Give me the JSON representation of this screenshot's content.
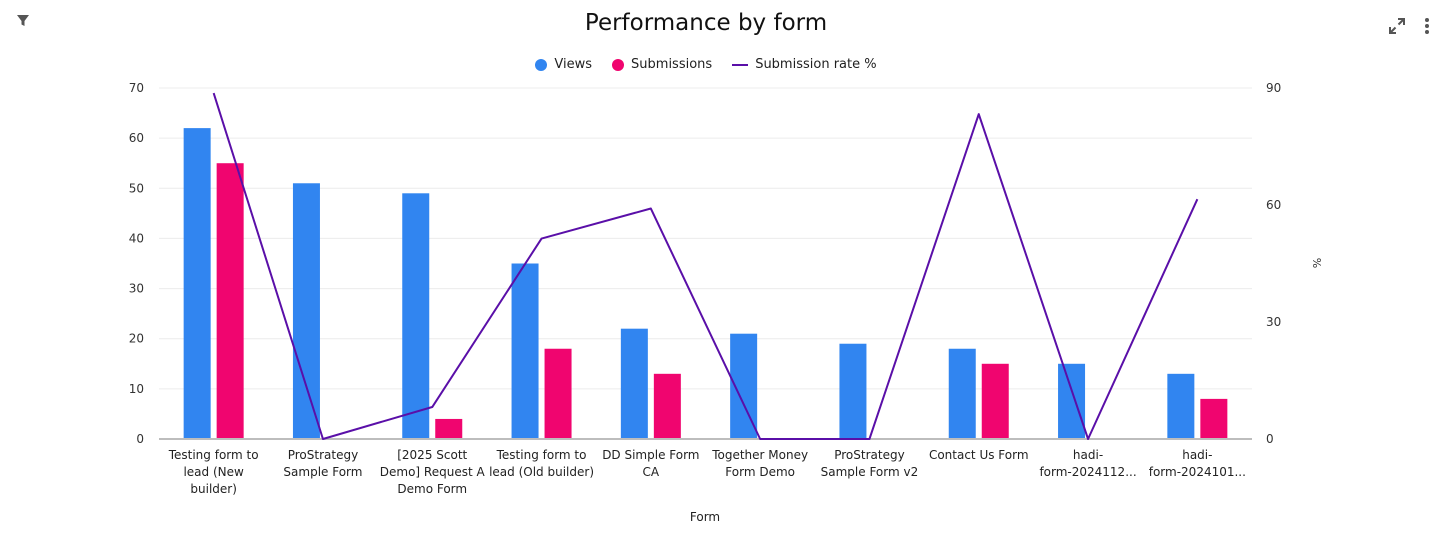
{
  "toolbar": {
    "filter_icon": "filter-icon",
    "expand_icon": "expand-icon",
    "menu_icon": "more-vertical-icon"
  },
  "colors": {
    "views": "#3185f0",
    "submissions": "#f0056f",
    "rate": "#5a0fa8",
    "grid": "#ececec",
    "axis": "#bdbdbd"
  },
  "chart_data": {
    "type": "bar",
    "title": "Performance by form",
    "xlabel": "Form",
    "ylabel": "",
    "y2label": "%",
    "ylim": [
      0,
      70
    ],
    "y2lim": [
      0,
      90
    ],
    "yticks": [
      "0",
      "10",
      "20",
      "30",
      "40",
      "50",
      "60",
      "70"
    ],
    "y2ticks": [
      "0",
      "30",
      "60",
      "90"
    ],
    "grid": true,
    "legend_position": "top-center",
    "categories": [
      "Testing form to lead (New builder)",
      "ProStrategy Sample Form",
      "[2025 Scott Demo] Request A Demo Form",
      "Testing form to lead (Old builder)",
      "DD Simple Form CA",
      "Together Money Form Demo",
      "ProStrategy Sample Form v2",
      "Contact Us Form",
      "hadi-form-2024112...",
      "hadi-form-2024101..."
    ],
    "category_lines": [
      [
        "Testing form to",
        "lead (New",
        "builder)"
      ],
      [
        "ProStrategy",
        "Sample Form"
      ],
      [
        "[2025 Scott",
        "Demo] Request A",
        "Demo Form"
      ],
      [
        "Testing form to",
        "lead (Old builder)"
      ],
      [
        "DD Simple Form",
        "CA"
      ],
      [
        "Together Money",
        "Form Demo"
      ],
      [
        "ProStrategy",
        "Sample Form v2"
      ],
      [
        "Contact Us Form"
      ],
      [
        "hadi-",
        "form-2024112..."
      ],
      [
        "hadi-",
        "form-2024101..."
      ]
    ],
    "series": [
      {
        "name": "Views",
        "type": "bar",
        "axis": "left",
        "values": [
          62,
          51,
          49,
          35,
          22,
          21,
          19,
          18,
          15,
          13
        ]
      },
      {
        "name": "Submissions",
        "type": "bar",
        "axis": "left",
        "values": [
          55,
          0,
          4,
          18,
          13,
          0,
          0,
          15,
          0,
          8
        ]
      },
      {
        "name": "Submission rate %",
        "type": "line",
        "axis": "right",
        "values": [
          88.7,
          0,
          8.2,
          51.4,
          59.1,
          0,
          0,
          83.3,
          0,
          61.5
        ]
      }
    ]
  }
}
